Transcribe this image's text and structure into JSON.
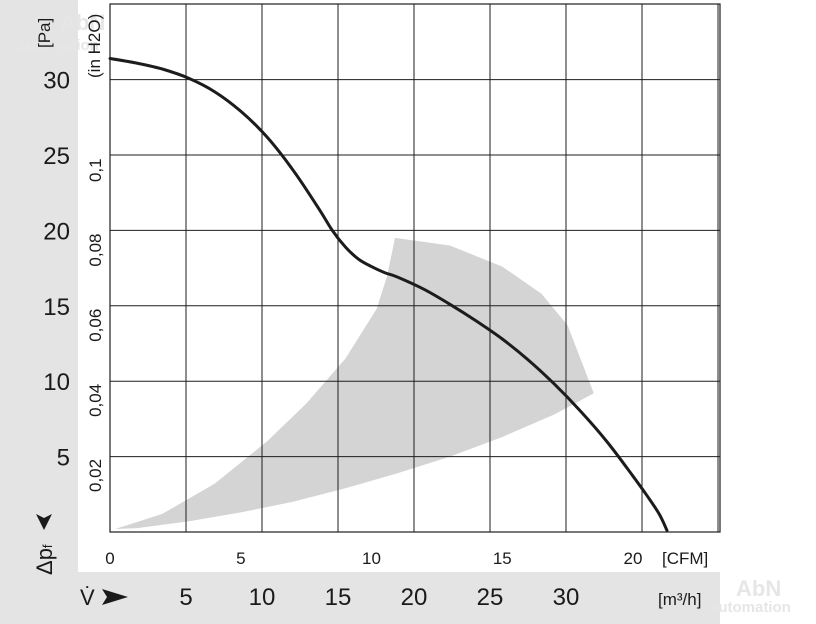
{
  "chart_data": {
    "type": "line",
    "title": "",
    "y_axis_left": {
      "unit_label": "[Pa]",
      "symbol_prefix": "Δp",
      "symbol_subscript": "f",
      "ticks": [
        5,
        10,
        15,
        20,
        25,
        30
      ],
      "ylim": [
        0,
        35
      ]
    },
    "y_axis_inner": {
      "unit_label": "(in H2O)",
      "ticks": [
        "0,02",
        "0,04",
        "0,06",
        "0,08",
        "0,1"
      ],
      "tick_values_pa": [
        4.98,
        9.96,
        14.94,
        19.93,
        24.91
      ]
    },
    "x_axis_top": {
      "unit_label": "[CFM]",
      "ticks": [
        0,
        5,
        10,
        15,
        20
      ],
      "xlim": [
        0,
        23.5
      ]
    },
    "x_axis_bottom": {
      "symbol": "V̇",
      "unit_label": "[m³/h]",
      "ticks": [
        5,
        10,
        15,
        20,
        25,
        30
      ]
    },
    "series": [
      {
        "color": "#1c1c1c",
        "x_cfm": [
          0,
          1,
          2,
          3,
          4,
          5,
          6,
          7,
          8,
          8.5,
          9,
          9.5,
          10,
          10.5,
          11,
          12,
          13,
          14,
          15,
          16,
          17,
          18,
          19,
          20,
          20.5,
          21,
          21.3
        ],
        "y_pa": [
          31.4,
          31.1,
          30.7,
          30.1,
          29.2,
          27.9,
          26.2,
          24.0,
          21.4,
          20.0,
          18.9,
          18.1,
          17.6,
          17.2,
          16.9,
          16.1,
          15.1,
          14.0,
          12.8,
          11.4,
          9.8,
          8.0,
          6.0,
          3.7,
          2.5,
          1.2,
          0.1
        ]
      }
    ],
    "operating_region": {
      "color": "#d4d4d4",
      "x_cfm": [
        0.2,
        2,
        4,
        6,
        7.5,
        9,
        10.2,
        10.6,
        10.9,
        13,
        15,
        16.5,
        17.5,
        18.5,
        17,
        15,
        13,
        11,
        9,
        7,
        5,
        3,
        1,
        0.2
      ],
      "y_pa": [
        0.2,
        1.2,
        3.2,
        6.0,
        8.5,
        11.5,
        14.8,
        17.0,
        19.5,
        19.0,
        17.6,
        15.8,
        13.7,
        9.2,
        7.8,
        6.3,
        5.0,
        3.9,
        2.9,
        2.0,
        1.3,
        0.7,
        0.25,
        0.2
      ]
    },
    "grid": true,
    "legend": "none"
  },
  "watermark": {
    "line1": "AbN",
    "line2": "automation"
  }
}
